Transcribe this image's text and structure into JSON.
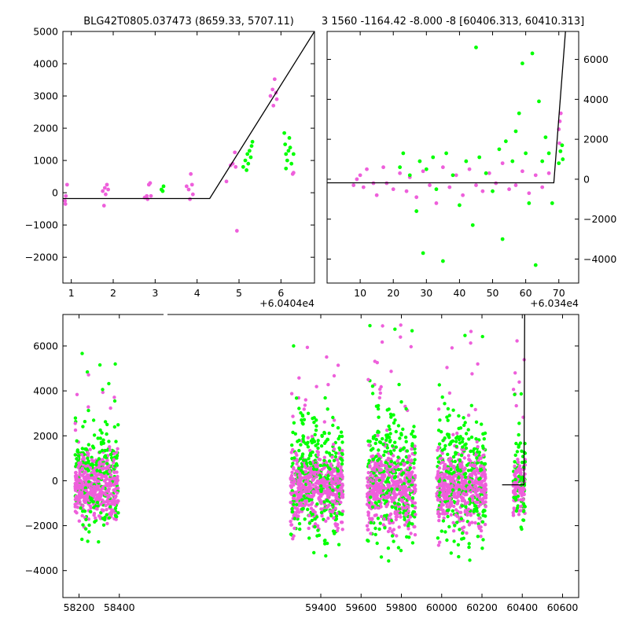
{
  "titles": {
    "left": "BLG42T0805.037473 (8659.33, 5707.11)",
    "right": "3 1560 -1164.42 -8.000 -8 [60406.313, 60410.313]"
  },
  "colors": {
    "series_a": "#ee5fdb",
    "series_b": "#00ff00",
    "model": "#000000"
  },
  "chart_data": [
    {
      "id": "zoom-left",
      "type": "scatter",
      "xlim": [
        0.8,
        6.8
      ],
      "ylim": [
        -2800,
        5000
      ],
      "x_offset_label": "+6.0404e4",
      "x_ticks": [
        1,
        2,
        3,
        4,
        5,
        6
      ],
      "x_tick_labels": [
        "1",
        "2",
        "3",
        "4",
        "5",
        "6"
      ],
      "y_ticks": [
        -2000,
        -1000,
        0,
        1000,
        2000,
        3000,
        4000,
        5000
      ],
      "y_tick_labels": [
        "−2000",
        "−1000",
        "0",
        "1000",
        "2000",
        "3000",
        "4000",
        "5000"
      ],
      "model_line": [
        [
          0.8,
          -180
        ],
        [
          4.3,
          -180
        ],
        [
          6.8,
          5000
        ]
      ],
      "series": [
        {
          "color_key": "series_a",
          "points": [
            [
              0.85,
              -250
            ],
            [
              0.87,
              -100
            ],
            [
              0.9,
              250
            ],
            [
              0.86,
              -350
            ],
            [
              1.75,
              50
            ],
            [
              1.8,
              150
            ],
            [
              1.78,
              -400
            ],
            [
              1.85,
              250
            ],
            [
              1.82,
              -50
            ],
            [
              1.88,
              100
            ],
            [
              2.75,
              -150
            ],
            [
              2.8,
              -100
            ],
            [
              2.82,
              -200
            ],
            [
              2.85,
              250
            ],
            [
              2.88,
              300
            ],
            [
              2.9,
              -100
            ],
            [
              3.75,
              200
            ],
            [
              3.8,
              100
            ],
            [
              3.85,
              580
            ],
            [
              3.83,
              -200
            ],
            [
              3.88,
              250
            ],
            [
              3.9,
              -50
            ],
            [
              4.7,
              350
            ],
            [
              4.8,
              850
            ],
            [
              4.85,
              900
            ],
            [
              4.9,
              1250
            ],
            [
              4.92,
              800
            ],
            [
              4.95,
              -1180
            ],
            [
              5.75,
              3000
            ],
            [
              5.8,
              3200
            ],
            [
              5.85,
              3520
            ],
            [
              5.88,
              3100
            ],
            [
              5.9,
              2900
            ],
            [
              5.82,
              2700
            ],
            [
              6.28,
              580
            ],
            [
              6.3,
              620
            ]
          ]
        },
        {
          "color_key": "series_b",
          "points": [
            [
              3.15,
              100
            ],
            [
              3.2,
              200
            ],
            [
              3.18,
              50
            ],
            [
              5.1,
              800
            ],
            [
              5.15,
              1000
            ],
            [
              5.2,
              1200
            ],
            [
              5.22,
              900
            ],
            [
              5.25,
              1300
            ],
            [
              5.28,
              1100
            ],
            [
              5.3,
              1450
            ],
            [
              5.32,
              1580
            ],
            [
              5.18,
              700
            ],
            [
              6.08,
              1850
            ],
            [
              6.1,
              1500
            ],
            [
              6.12,
              1200
            ],
            [
              6.15,
              1000
            ],
            [
              6.18,
              1300
            ],
            [
              6.2,
              1700
            ],
            [
              6.22,
              1400
            ],
            [
              6.25,
              900
            ],
            [
              6.3,
              1200
            ],
            [
              6.12,
              750
            ]
          ]
        }
      ]
    },
    {
      "id": "zoom-right",
      "type": "scatter",
      "xlim": [
        0,
        76
      ],
      "ylim": [
        -5200,
        7400
      ],
      "x_offset_label": "+6.034e4",
      "x_ticks": [
        10,
        20,
        30,
        40,
        50,
        60,
        70
      ],
      "x_tick_labels": [
        "10",
        "20",
        "30",
        "40",
        "50",
        "60",
        "70"
      ],
      "y_ticks": [
        -4000,
        -2000,
        0,
        2000,
        4000,
        6000
      ],
      "y_tick_labels": [
        "−4000",
        "−2000",
        "0",
        "2000",
        "4000",
        "6000"
      ],
      "model_line": [
        [
          0,
          -180
        ],
        [
          68.5,
          -180
        ],
        [
          72,
          7400
        ]
      ],
      "series": [
        {
          "color_key": "series_a",
          "points": [
            [
              8,
              -300
            ],
            [
              9,
              0
            ],
            [
              10,
              200
            ],
            [
              11,
              -400
            ],
            [
              12,
              500
            ],
            [
              14,
              -200
            ],
            [
              15,
              -800
            ],
            [
              17,
              600
            ],
            [
              18,
              -200
            ],
            [
              20,
              -500
            ],
            [
              22,
              300
            ],
            [
              24,
              -600
            ],
            [
              25,
              100
            ],
            [
              27,
              -900
            ],
            [
              29,
              400
            ],
            [
              31,
              -300
            ],
            [
              33,
              -1200
            ],
            [
              35,
              600
            ],
            [
              37,
              -400
            ],
            [
              39,
              200
            ],
            [
              41,
              -800
            ],
            [
              43,
              500
            ],
            [
              45,
              -300
            ],
            [
              47,
              -600
            ],
            [
              49,
              300
            ],
            [
              51,
              -200
            ],
            [
              53,
              800
            ],
            [
              55,
              -500
            ],
            [
              57,
              -300
            ],
            [
              59,
              400
            ],
            [
              61,
              -700
            ],
            [
              63,
              200
            ],
            [
              65,
              -400
            ],
            [
              67,
              300
            ],
            [
              70,
              2500
            ],
            [
              70.3,
              2900
            ],
            [
              70.6,
              3300
            ],
            [
              70.2,
              1800
            ]
          ]
        },
        {
          "color_key": "series_b",
          "points": [
            [
              22,
              600
            ],
            [
              23,
              1300
            ],
            [
              25,
              200
            ],
            [
              27,
              -1600
            ],
            [
              28,
              900
            ],
            [
              29,
              -3700
            ],
            [
              30,
              500
            ],
            [
              32,
              1100
            ],
            [
              33,
              -500
            ],
            [
              35,
              -4100
            ],
            [
              36,
              1300
            ],
            [
              38,
              200
            ],
            [
              40,
              -1300
            ],
            [
              42,
              900
            ],
            [
              44,
              -2300
            ],
            [
              45,
              6600
            ],
            [
              46,
              1100
            ],
            [
              48,
              300
            ],
            [
              50,
              -600
            ],
            [
              52,
              1500
            ],
            [
              53,
              -3000
            ],
            [
              54,
              1900
            ],
            [
              56,
              900
            ],
            [
              57,
              2400
            ],
            [
              58,
              3300
            ],
            [
              59,
              5800
            ],
            [
              60,
              1300
            ],
            [
              61,
              -1200
            ],
            [
              62,
              6300
            ],
            [
              63,
              -4300
            ],
            [
              64,
              3900
            ],
            [
              65,
              900
            ],
            [
              66,
              2100
            ],
            [
              67,
              1300
            ],
            [
              68,
              -1200
            ],
            [
              70,
              800
            ],
            [
              70.5,
              1400
            ],
            [
              71,
              1700
            ],
            [
              71.2,
              1000
            ]
          ]
        }
      ]
    },
    {
      "id": "full-light-curve",
      "type": "scatter",
      "xlim": [
        58120,
        60680
      ],
      "ylim": [
        -5200,
        7400
      ],
      "x_ticks": [
        58200,
        58400,
        59400,
        59600,
        59800,
        60000,
        60200,
        60400,
        60600
      ],
      "x_tick_labels": [
        "58200",
        "58400",
        "59400",
        "59600",
        "59800",
        "60000",
        "60200",
        "60400",
        "60600"
      ],
      "y_ticks": [
        -4000,
        -2000,
        0,
        2000,
        4000,
        6000
      ],
      "y_tick_labels": [
        "−4000",
        "−2000",
        "0",
        "2000",
        "4000",
        "6000"
      ],
      "model_line": [
        [
          60300,
          -180
        ],
        [
          60408.5,
          -180
        ],
        [
          60412,
          7400
        ]
      ],
      "seasons": [
        {
          "x_range": [
            58180,
            58395
          ],
          "spread": 700,
          "outlier": 5500
        },
        {
          "x_range": [
            59250,
            59510
          ],
          "spread": 800,
          "outlier": 6200
        },
        {
          "x_range": [
            59630,
            59870
          ],
          "spread": 900,
          "outlier": 7200
        },
        {
          "x_range": [
            59975,
            60220
          ],
          "spread": 850,
          "outlier": 6900
        },
        {
          "x_range": [
            60355,
            60415
          ],
          "spread": 600,
          "outlier": 6500
        }
      ]
    }
  ]
}
